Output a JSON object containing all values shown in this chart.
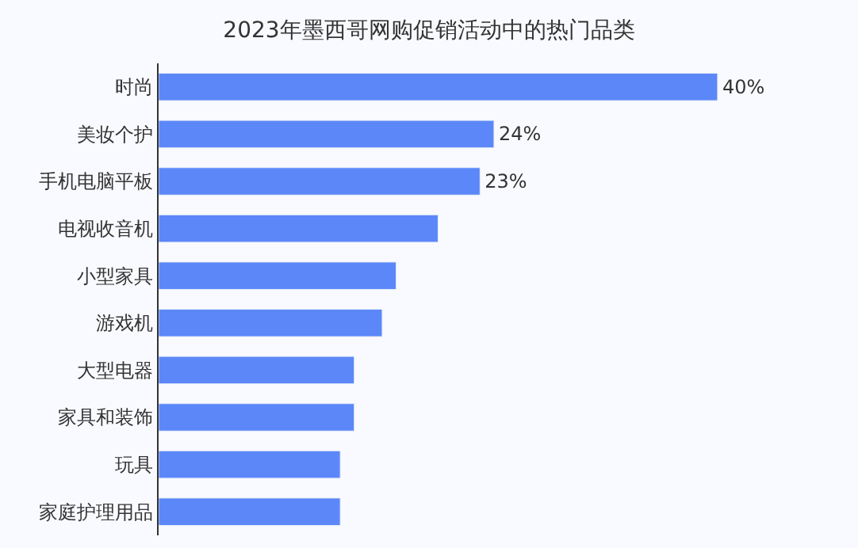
{
  "chart_data": {
    "type": "bar",
    "orientation": "horizontal",
    "title": "2023年墨西哥网购促销活动中的热门品类",
    "categories": [
      "时尚",
      "美妆个护",
      "手机电脑平板",
      "电视收音机",
      "小型家具",
      "游戏机",
      "大型电器",
      "家具和装饰",
      "玩具",
      "家庭护理用品"
    ],
    "values": [
      40,
      24,
      23,
      20,
      17,
      16,
      14,
      14,
      13,
      13
    ],
    "value_labels": [
      "40%",
      "24%",
      "23%",
      null,
      null,
      null,
      null,
      null,
      null,
      null
    ],
    "color": "#5b87f9",
    "tick_labels": "y",
    "grid": false,
    "legend": false
  }
}
